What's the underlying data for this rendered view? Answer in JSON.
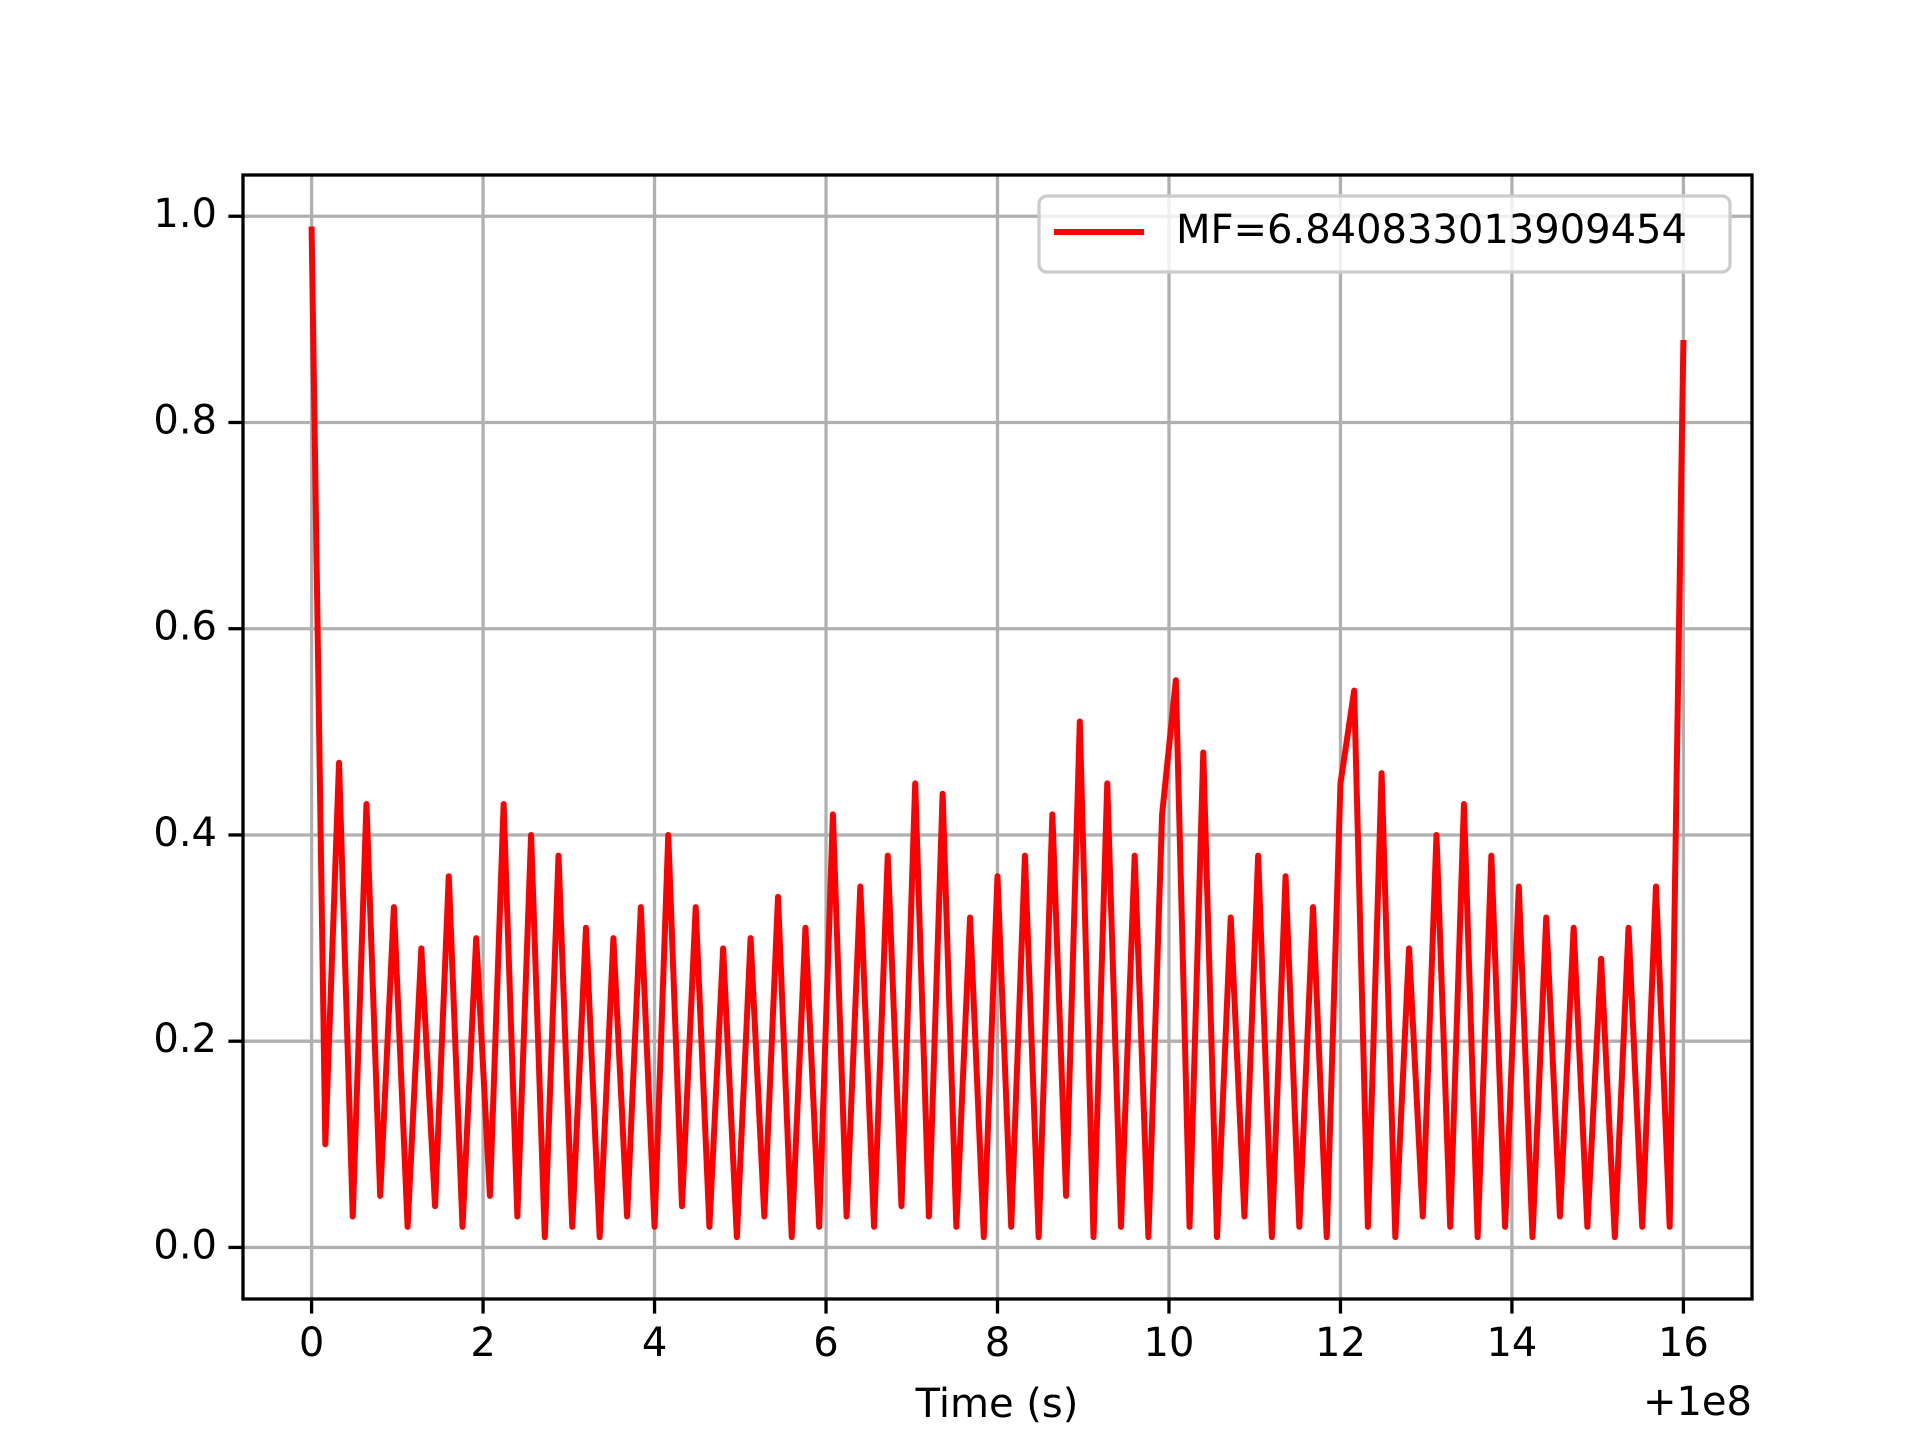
{
  "chart_data": {
    "type": "line",
    "x_label": "Time (s)",
    "x_offset_text": "+1e8",
    "x": [
      0,
      0.16,
      0.32,
      0.48,
      0.64,
      0.8,
      0.96,
      1.12,
      1.28,
      1.44,
      1.6,
      1.76,
      1.92,
      2.08,
      2.24,
      2.4,
      2.56,
      2.72,
      2.88,
      3.04,
      3.2,
      3.36,
      3.52,
      3.68,
      3.84,
      4,
      4.16,
      4.32,
      4.48,
      4.64,
      4.8,
      4.96,
      5.12,
      5.28,
      5.44,
      5.6,
      5.76,
      5.92,
      6.08,
      6.24,
      6.4,
      6.56,
      6.72,
      6.88,
      7.04,
      7.2,
      7.36,
      7.52,
      7.68,
      7.84,
      8,
      8.16,
      8.32,
      8.48,
      8.64,
      8.8,
      8.96,
      9.12,
      9.28,
      9.44,
      9.6,
      9.76,
      9.92,
      10.08,
      10.24,
      10.4,
      10.56,
      10.72,
      10.88,
      11.04,
      11.2,
      11.36,
      11.52,
      11.68,
      11.84,
      12,
      12.16,
      12.32,
      12.48,
      12.64,
      12.8,
      12.96,
      13.12,
      13.28,
      13.44,
      13.6,
      13.76,
      13.92,
      14.08,
      14.24,
      14.4,
      14.56,
      14.72,
      14.88,
      15.04,
      15.2,
      15.36,
      15.52,
      15.68,
      15.84,
      16
    ],
    "series": [
      {
        "name": "MF=6.840833013909454",
        "color": "#ff0000",
        "values": [
          0.99,
          0.1,
          0.47,
          0.03,
          0.43,
          0.05,
          0.33,
          0.02,
          0.29,
          0.04,
          0.36,
          0.02,
          0.3,
          0.05,
          0.43,
          0.03,
          0.4,
          0.01,
          0.38,
          0.02,
          0.31,
          0.01,
          0.3,
          0.03,
          0.33,
          0.02,
          0.4,
          0.04,
          0.33,
          0.02,
          0.29,
          0.01,
          0.3,
          0.03,
          0.34,
          0.01,
          0.31,
          0.02,
          0.42,
          0.03,
          0.35,
          0.02,
          0.38,
          0.04,
          0.45,
          0.03,
          0.44,
          0.02,
          0.32,
          0.01,
          0.36,
          0.02,
          0.38,
          0.01,
          0.42,
          0.05,
          0.51,
          0.01,
          0.45,
          0.02,
          0.38,
          0.01,
          0.42,
          0.55,
          0.02,
          0.48,
          0.01,
          0.32,
          0.03,
          0.38,
          0.01,
          0.36,
          0.02,
          0.33,
          0.01,
          0.45,
          0.54,
          0.02,
          0.46,
          0.01,
          0.29,
          0.03,
          0.4,
          0.02,
          0.43,
          0.01,
          0.38,
          0.02,
          0.35,
          0.01,
          0.32,
          0.03,
          0.31,
          0.02,
          0.28,
          0.01,
          0.31,
          0.02,
          0.35,
          0.02,
          0.88
        ]
      }
    ],
    "xlim": [
      -0.8,
      16.8
    ],
    "ylim": [
      -0.05,
      1.04
    ],
    "xticks": [
      0,
      2,
      4,
      6,
      8,
      10,
      12,
      14,
      16
    ],
    "yticks": [
      {
        "value": 0,
        "label": "0.0"
      },
      {
        "value": 0.2,
        "label": "0.2"
      },
      {
        "value": 0.4,
        "label": "0.4"
      },
      {
        "value": 0.6,
        "label": "0.6"
      },
      {
        "value": 0.8,
        "label": "0.8"
      },
      {
        "value": 1,
        "label": "1.0"
      }
    ],
    "grid": true,
    "legend": "upper right"
  }
}
